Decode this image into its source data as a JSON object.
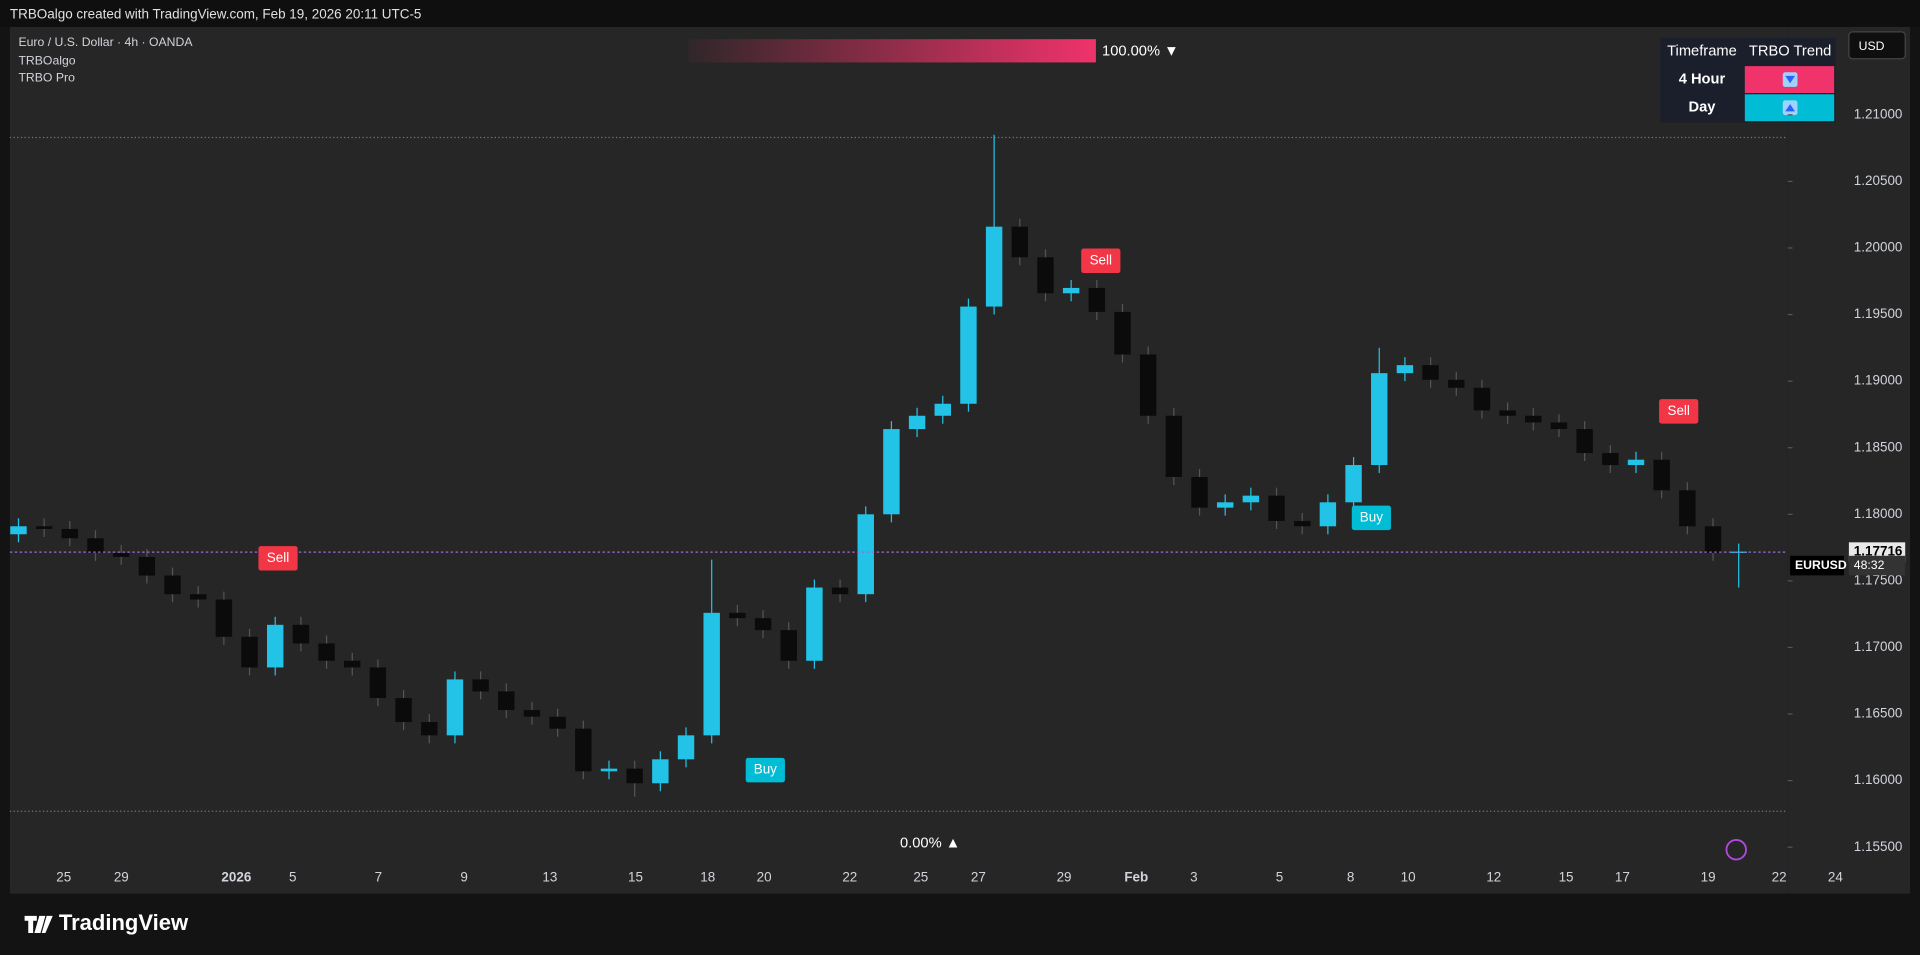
{
  "header": {
    "attribution": "TRBOalgo created with TradingView.com, Feb 19, 2026 20:11 UTC-5"
  },
  "currency_button": "USD",
  "trend_table": {
    "columns": [
      "Timeframe",
      "TRBO Trend"
    ],
    "rows": [
      "4 Hour",
      "Day"
    ]
  },
  "gauge": {
    "top_label": "100.00% ▼",
    "bottom_label": "0.00% ▲"
  },
  "footer": {
    "brand": "TradingView"
  },
  "chart_data": {
    "type": "candlestick",
    "title": "Euro / U.S. Dollar · 4h · OANDA",
    "indicators": [
      "TRBOalgo",
      "TRBO Pro"
    ],
    "up_color": "#22c3e6",
    "down_color": "#0b0b0b",
    "open": [
      1.1785,
      1.1791,
      1.1789,
      1.1782,
      1.1771,
      1.1768,
      1.1754,
      1.174,
      1.1736,
      1.1708,
      1.1685,
      1.1717,
      1.1703,
      1.169,
      1.1685,
      1.1662,
      1.1644,
      1.1634,
      1.1676,
      1.1667,
      1.1653,
      1.1648,
      1.1639,
      1.1607,
      1.1609,
      1.1598,
      1.1616,
      1.1634,
      1.1726,
      1.1722,
      1.1713,
      1.169,
      1.1745,
      1.174,
      1.18,
      1.1864,
      1.1874,
      1.1883,
      1.1956,
      1.2016,
      1.1993,
      1.1966,
      1.197,
      1.1952,
      1.192,
      1.1874,
      1.1828,
      1.1805,
      1.1809,
      1.1814,
      1.1795,
      1.1791,
      1.1809,
      1.1837,
      1.1906,
      1.1912,
      1.1901,
      1.1895,
      1.1878,
      1.1874,
      1.1869,
      1.1864,
      1.1846,
      1.1837,
      1.1841,
      1.1818,
      1.1791,
      1.1771
    ],
    "high": [
      1.1797,
      1.1797,
      1.1795,
      1.1788,
      1.1777,
      1.1774,
      1.176,
      1.1746,
      1.1742,
      1.1714,
      1.1723,
      1.1723,
      1.1709,
      1.1696,
      1.1691,
      1.1668,
      1.165,
      1.1682,
      1.1682,
      1.1673,
      1.1659,
      1.1654,
      1.1645,
      1.1615,
      1.1615,
      1.1622,
      1.164,
      1.1766,
      1.1732,
      1.1728,
      1.1719,
      1.1751,
      1.1751,
      1.1806,
      1.187,
      1.188,
      1.1889,
      1.1962,
      1.2085,
      1.2022,
      1.1999,
      1.1976,
      1.1976,
      1.1958,
      1.1926,
      1.188,
      1.1834,
      1.1815,
      1.182,
      1.182,
      1.1801,
      1.1815,
      1.1843,
      1.1925,
      1.1918,
      1.1918,
      1.1907,
      1.1901,
      1.1884,
      1.188,
      1.1875,
      1.187,
      1.1852,
      1.1847,
      1.1847,
      1.1824,
      1.1797,
      1.1778
    ],
    "low": [
      1.1779,
      1.1783,
      1.1776,
      1.1765,
      1.1762,
      1.1748,
      1.1734,
      1.173,
      1.1702,
      1.1679,
      1.1679,
      1.1697,
      1.1684,
      1.1679,
      1.1656,
      1.1638,
      1.1628,
      1.1628,
      1.1661,
      1.1647,
      1.1642,
      1.1633,
      1.1601,
      1.1601,
      1.1588,
      1.1592,
      1.161,
      1.1628,
      1.1716,
      1.1707,
      1.1684,
      1.1684,
      1.1734,
      1.1734,
      1.1794,
      1.1858,
      1.1868,
      1.1877,
      1.195,
      1.1987,
      1.196,
      1.196,
      1.1946,
      1.1914,
      1.1868,
      1.1822,
      1.1799,
      1.1799,
      1.1803,
      1.1789,
      1.1785,
      1.1785,
      1.1803,
      1.1831,
      1.19,
      1.1895,
      1.1889,
      1.1872,
      1.1868,
      1.1863,
      1.1858,
      1.184,
      1.1831,
      1.1831,
      1.1812,
      1.1785,
      1.1765,
      1.1745
    ],
    "close": [
      1.1791,
      1.1789,
      1.1782,
      1.1771,
      1.1768,
      1.1754,
      1.174,
      1.1736,
      1.1708,
      1.1685,
      1.1717,
      1.1703,
      1.169,
      1.1685,
      1.1662,
      1.1644,
      1.1634,
      1.1676,
      1.1667,
      1.1653,
      1.1648,
      1.1639,
      1.1607,
      1.1609,
      1.1598,
      1.1616,
      1.1634,
      1.1726,
      1.1722,
      1.1713,
      1.169,
      1.1745,
      1.174,
      1.18,
      1.1864,
      1.1874,
      1.1883,
      1.1956,
      1.2016,
      1.1993,
      1.1966,
      1.197,
      1.1952,
      1.192,
      1.1874,
      1.1828,
      1.1805,
      1.1809,
      1.1814,
      1.1795,
      1.1791,
      1.1809,
      1.1837,
      1.1906,
      1.1912,
      1.1901,
      1.1895,
      1.1878,
      1.1874,
      1.1869,
      1.1864,
      1.1846,
      1.1837,
      1.1841,
      1.1818,
      1.1791,
      1.1771,
      1.1772
    ],
    "x_tick_labels": [
      "25",
      "29",
      "2026",
      "5",
      "7",
      "9",
      "13",
      "15",
      "18",
      "20",
      "22",
      "25",
      "27",
      "29",
      "Feb",
      "3",
      "5",
      "8",
      "10",
      "12",
      "15",
      "17",
      "19",
      "22",
      "24"
    ],
    "ylim": [
      1.1538,
      1.2166
    ],
    "yticks": [
      {
        "value": 1.155,
        "label": "1.15500"
      },
      {
        "value": 1.16,
        "label": "1.16000"
      },
      {
        "value": 1.165,
        "label": "1.16500"
      },
      {
        "value": 1.17,
        "label": "1.17000"
      },
      {
        "value": 1.175,
        "label": "1.17500"
      },
      {
        "value": 1.18,
        "label": "1.18000"
      },
      {
        "value": 1.185,
        "label": "1.18500"
      },
      {
        "value": 1.19,
        "label": "1.19000"
      },
      {
        "value": 1.195,
        "label": "1.19500"
      },
      {
        "value": 1.2,
        "label": "1.20000"
      },
      {
        "value": 1.205,
        "label": "1.20500"
      },
      {
        "value": 1.21,
        "label": "1.21000"
      }
    ],
    "grid": false,
    "levels": [
      1.2083,
      1.1577
    ],
    "last_price": 1.17716,
    "symbol_label": "EURUSD",
    "countdown": "48:32",
    "signals": [
      "Sell",
      "Buy",
      "Sell",
      "Buy",
      "Sell"
    ]
  }
}
